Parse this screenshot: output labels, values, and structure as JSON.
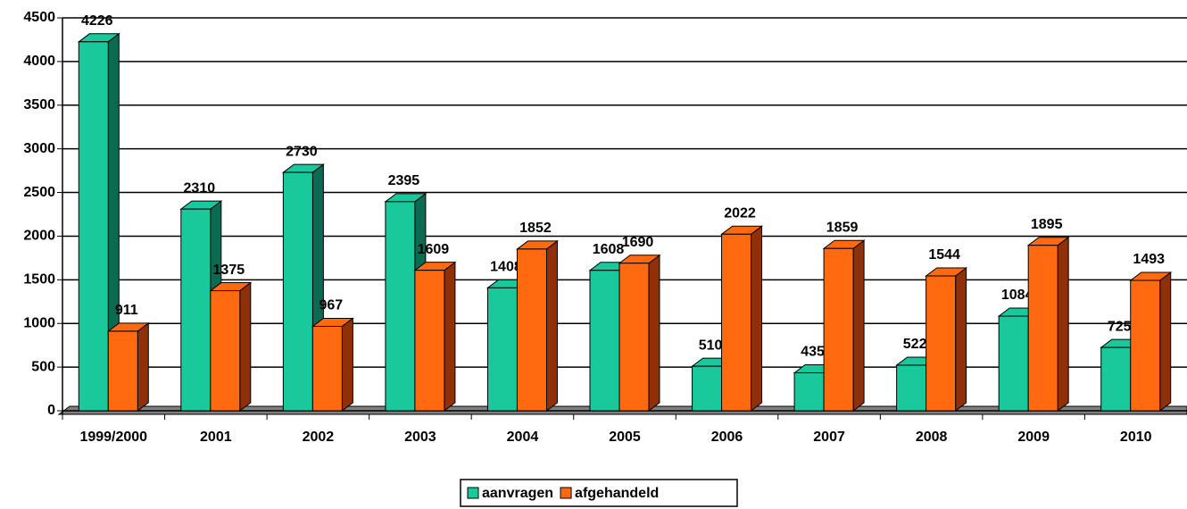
{
  "chart_data": {
    "type": "bar3d",
    "categories": [
      "1999/2000",
      "2001",
      "2002",
      "2003",
      "2004",
      "2005",
      "2006",
      "2007",
      "2008",
      "2009",
      "2010"
    ],
    "series": [
      {
        "name": "aanvragen",
        "color": "#19c89b",
        "side_color": "#0a6b52",
        "values": [
          4226,
          2310,
          2730,
          2395,
          1408,
          1608,
          510,
          435,
          522,
          1084,
          725
        ]
      },
      {
        "name": "afgehandeld",
        "color": "#ff6a10",
        "side_color": "#8f3008",
        "values": [
          911,
          1375,
          967,
          1609,
          1852,
          1690,
          2022,
          1859,
          1544,
          1895,
          1493
        ]
      }
    ],
    "ylim": [
      0,
      4500
    ],
    "yticks": [
      0,
      500,
      1000,
      1500,
      2000,
      2500,
      3000,
      3500,
      4000,
      4500
    ],
    "grid": true,
    "legend": "bottom"
  }
}
